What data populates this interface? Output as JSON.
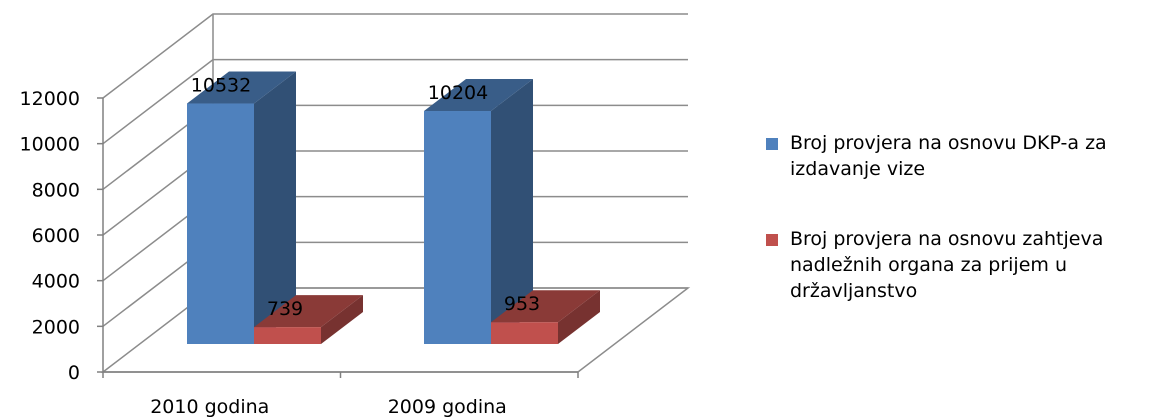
{
  "chart_data": {
    "type": "bar",
    "title": "",
    "xlabel": "",
    "ylabel": "",
    "categories": [
      "2010 godina",
      "2009 godina"
    ],
    "ylim": [
      0,
      12000
    ],
    "yticks": [
      "0",
      "2000",
      "4000",
      "6000",
      "8000",
      "10000",
      "12000"
    ],
    "grid": true,
    "three_d": true,
    "legend_position": "right",
    "series": [
      {
        "name": "Broj provjera na osnovu DKP-a za izdavanje vize",
        "values": [
          10532,
          10204
        ],
        "labels": [
          "10532",
          "10204"
        ],
        "color": "#4f81bd"
      },
      {
        "name": "Broj provjera na osnovu zahtjeva nadležnih organa za prijem u državljanstvo",
        "values": [
          739,
          953
        ],
        "labels": [
          "739",
          "953"
        ],
        "color": "#c0504d"
      }
    ]
  }
}
